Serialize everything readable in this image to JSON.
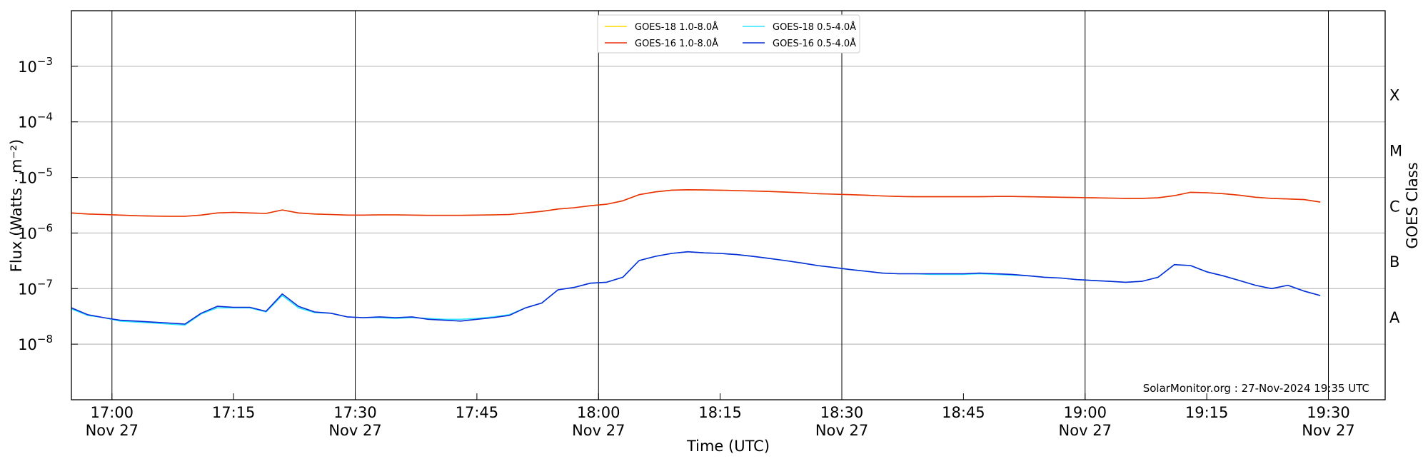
{
  "chart_data": {
    "type": "line",
    "xlabel": "Time (UTC)",
    "ylabel": "Flux (Watts · m⁻²)",
    "y2label": "GOES Class",
    "yscale": "log",
    "ylim": [
      1e-09,
      0.01
    ],
    "xlim": [
      "16:55",
      "19:37"
    ],
    "grid": "horizontal at decades; vertical at half-hours",
    "legend_position": "top-center",
    "x_ticks": [
      {
        "time": "17:00",
        "line1": "17:00",
        "line2": "Nov 27"
      },
      {
        "time": "17:15",
        "line1": "17:15",
        "line2": ""
      },
      {
        "time": "17:30",
        "line1": "17:30",
        "line2": "Nov 27"
      },
      {
        "time": "17:45",
        "line1": "17:45",
        "line2": ""
      },
      {
        "time": "18:00",
        "line1": "18:00",
        "line2": "Nov 27"
      },
      {
        "time": "18:15",
        "line1": "18:15",
        "line2": ""
      },
      {
        "time": "18:30",
        "line1": "18:30",
        "line2": "Nov 27"
      },
      {
        "time": "18:45",
        "line1": "18:45",
        "line2": ""
      },
      {
        "time": "19:00",
        "line1": "19:00",
        "line2": "Nov 27"
      },
      {
        "time": "19:15",
        "line1": "19:15",
        "line2": ""
      },
      {
        "time": "19:30",
        "line1": "19:30",
        "line2": "Nov 27"
      }
    ],
    "y_ticks": [
      {
        "value": 1e-08,
        "base": "10",
        "exp": "−8"
      },
      {
        "value": 1e-07,
        "base": "10",
        "exp": "−7"
      },
      {
        "value": 1e-06,
        "base": "10",
        "exp": "−6"
      },
      {
        "value": 1e-05,
        "base": "10",
        "exp": "−5"
      },
      {
        "value": 0.0001,
        "base": "10",
        "exp": "−4"
      },
      {
        "value": 0.001,
        "base": "10",
        "exp": "−3"
      }
    ],
    "goes_classes": [
      {
        "label": "A",
        "value": 3e-08
      },
      {
        "label": "B",
        "value": 3e-07
      },
      {
        "label": "C",
        "value": 3e-06
      },
      {
        "label": "M",
        "value": 3e-05
      },
      {
        "label": "X",
        "value": 0.0003
      }
    ],
    "annotation": "SolarMonitor.org : 27-Nov-2024 19:35 UTC",
    "x": [
      "16:55",
      "16:57",
      "16:59",
      "17:01",
      "17:03",
      "17:05",
      "17:07",
      "17:09",
      "17:11",
      "17:13",
      "17:15",
      "17:17",
      "17:19",
      "17:21",
      "17:23",
      "17:25",
      "17:27",
      "17:29",
      "17:31",
      "17:33",
      "17:35",
      "17:37",
      "17:39",
      "17:41",
      "17:43",
      "17:45",
      "17:47",
      "17:49",
      "17:51",
      "17:53",
      "17:55",
      "17:57",
      "17:59",
      "18:01",
      "18:03",
      "18:05",
      "18:07",
      "18:09",
      "18:11",
      "18:13",
      "18:15",
      "18:17",
      "18:19",
      "18:21",
      "18:23",
      "18:25",
      "18:27",
      "18:29",
      "18:31",
      "18:33",
      "18:35",
      "18:37",
      "18:39",
      "18:41",
      "18:43",
      "18:45",
      "18:47",
      "18:49",
      "18:51",
      "18:53",
      "18:55",
      "18:57",
      "18:59",
      "19:01",
      "19:03",
      "19:05",
      "19:07",
      "19:09",
      "19:11",
      "19:13",
      "19:15",
      "19:17",
      "19:19",
      "19:21",
      "19:23",
      "19:25",
      "19:27",
      "19:29"
    ],
    "series": [
      {
        "name": "GOES-18 1.0-8.0Å",
        "color": "#ffd700",
        "values": [
          2.3e-06,
          2.2e-06,
          2.15e-06,
          2.1e-06,
          2.05e-06,
          2.02e-06,
          2e-06,
          2e-06,
          2.1e-06,
          2.3e-06,
          2.35e-06,
          2.3e-06,
          2.25e-06,
          2.6e-06,
          2.3e-06,
          2.2e-06,
          2.15e-06,
          2.1e-06,
          2.1e-06,
          2.12e-06,
          2.12e-06,
          2.1e-06,
          2.08e-06,
          2.08e-06,
          2.08e-06,
          2.1e-06,
          2.12e-06,
          2.15e-06,
          2.3e-06,
          2.45e-06,
          2.7e-06,
          2.85e-06,
          3.1e-06,
          3.3e-06,
          3.8e-06,
          4.9e-06,
          5.5e-06,
          5.9e-06,
          6e-06,
          5.95e-06,
          5.9e-06,
          5.8e-06,
          5.7e-06,
          5.6e-06,
          5.45e-06,
          5.3e-06,
          5.1e-06,
          5e-06,
          4.9e-06,
          4.8e-06,
          4.65e-06,
          4.55e-06,
          4.5e-06,
          4.5e-06,
          4.5e-06,
          4.5e-06,
          4.5e-06,
          4.55e-06,
          4.55e-06,
          4.5e-06,
          4.45e-06,
          4.4e-06,
          4.35e-06,
          4.3e-06,
          4.25e-06,
          4.2e-06,
          4.2e-06,
          4.3e-06,
          4.7e-06,
          5.4e-06,
          5.3e-06,
          5.1e-06,
          4.8e-06,
          4.4e-06,
          4.2e-06,
          4.1e-06,
          4e-06,
          3.6e-06
        ]
      },
      {
        "name": "GOES-16 1.0-8.0Å",
        "color": "#e8300f",
        "values": [
          2.3e-06,
          2.2e-06,
          2.15e-06,
          2.1e-06,
          2.05e-06,
          2.02e-06,
          2e-06,
          2e-06,
          2.1e-06,
          2.3e-06,
          2.35e-06,
          2.3e-06,
          2.25e-06,
          2.6e-06,
          2.3e-06,
          2.2e-06,
          2.15e-06,
          2.1e-06,
          2.1e-06,
          2.12e-06,
          2.12e-06,
          2.1e-06,
          2.08e-06,
          2.08e-06,
          2.08e-06,
          2.1e-06,
          2.12e-06,
          2.15e-06,
          2.3e-06,
          2.45e-06,
          2.7e-06,
          2.85e-06,
          3.1e-06,
          3.3e-06,
          3.8e-06,
          4.9e-06,
          5.5e-06,
          5.9e-06,
          6e-06,
          5.95e-06,
          5.9e-06,
          5.8e-06,
          5.7e-06,
          5.6e-06,
          5.45e-06,
          5.3e-06,
          5.1e-06,
          5e-06,
          4.9e-06,
          4.8e-06,
          4.65e-06,
          4.55e-06,
          4.5e-06,
          4.5e-06,
          4.5e-06,
          4.5e-06,
          4.5e-06,
          4.55e-06,
          4.55e-06,
          4.5e-06,
          4.45e-06,
          4.4e-06,
          4.35e-06,
          4.3e-06,
          4.25e-06,
          4.2e-06,
          4.2e-06,
          4.3e-06,
          4.7e-06,
          5.4e-06,
          5.3e-06,
          5.1e-06,
          4.8e-06,
          4.4e-06,
          4.2e-06,
          4.1e-06,
          4e-06,
          3.6e-06
        ]
      },
      {
        "name": "GOES-18 0.5-4.0Å",
        "color": "#2ee6ff",
        "values": [
          4.3e-08,
          3.3e-08,
          3e-08,
          2.6e-08,
          2.5e-08,
          2.4e-08,
          2.3e-08,
          2.2e-08,
          3.5e-08,
          4.5e-08,
          4.5e-08,
          4.5e-08,
          3.8e-08,
          7.5e-08,
          4.5e-08,
          3.7e-08,
          3.6e-08,
          3.1e-08,
          3e-08,
          3e-08,
          2.9e-08,
          3e-08,
          2.9e-08,
          2.8e-08,
          2.8e-08,
          2.9e-08,
          3.1e-08,
          3.4e-08,
          4.5e-08,
          5.5e-08,
          9.5e-08,
          1.05e-07,
          1.25e-07,
          1.3e-07,
          1.6e-07,
          3.2e-07,
          3.8e-07,
          4.3e-07,
          4.6e-07,
          4.4e-07,
          4.3e-07,
          4.1e-07,
          3.8e-07,
          3.5e-07,
          3.2e-07,
          2.9e-07,
          2.6e-07,
          2.4e-07,
          2.2e-07,
          2.05e-07,
          1.9e-07,
          1.85e-07,
          1.85e-07,
          1.8e-07,
          1.8e-07,
          1.8e-07,
          1.85e-07,
          1.8e-07,
          1.75e-07,
          1.7e-07,
          1.6e-07,
          1.55e-07,
          1.45e-07,
          1.4e-07,
          1.35e-07,
          1.3e-07,
          1.35e-07,
          1.6e-07,
          2.7e-07,
          2.6e-07,
          2e-07,
          1.7e-07,
          1.4e-07,
          1.15e-07,
          1e-07,
          1.15e-07,
          9e-08,
          7.5e-08
        ]
      },
      {
        "name": "GOES-16 0.5-4.0Å",
        "color": "#0a2bd6",
        "values": [
          4.5e-08,
          3.4e-08,
          3e-08,
          2.7e-08,
          2.6e-08,
          2.5e-08,
          2.4e-08,
          2.3e-08,
          3.6e-08,
          4.8e-08,
          4.6e-08,
          4.6e-08,
          3.9e-08,
          8e-08,
          4.8e-08,
          3.8e-08,
          3.6e-08,
          3.1e-08,
          3e-08,
          3.1e-08,
          3e-08,
          3.1e-08,
          2.8e-08,
          2.7e-08,
          2.6e-08,
          2.8e-08,
          3e-08,
          3.3e-08,
          4.5e-08,
          5.5e-08,
          9.5e-08,
          1.05e-07,
          1.25e-07,
          1.3e-07,
          1.6e-07,
          3.2e-07,
          3.8e-07,
          4.3e-07,
          4.6e-07,
          4.4e-07,
          4.3e-07,
          4.1e-07,
          3.8e-07,
          3.5e-07,
          3.2e-07,
          2.9e-07,
          2.6e-07,
          2.4e-07,
          2.2e-07,
          2.05e-07,
          1.9e-07,
          1.85e-07,
          1.85e-07,
          1.85e-07,
          1.85e-07,
          1.85e-07,
          1.9e-07,
          1.85e-07,
          1.8e-07,
          1.7e-07,
          1.6e-07,
          1.55e-07,
          1.45e-07,
          1.4e-07,
          1.35e-07,
          1.3e-07,
          1.35e-07,
          1.6e-07,
          2.7e-07,
          2.6e-07,
          2e-07,
          1.7e-07,
          1.4e-07,
          1.15e-07,
          1e-07,
          1.15e-07,
          9e-08,
          7.5e-08
        ]
      }
    ]
  }
}
